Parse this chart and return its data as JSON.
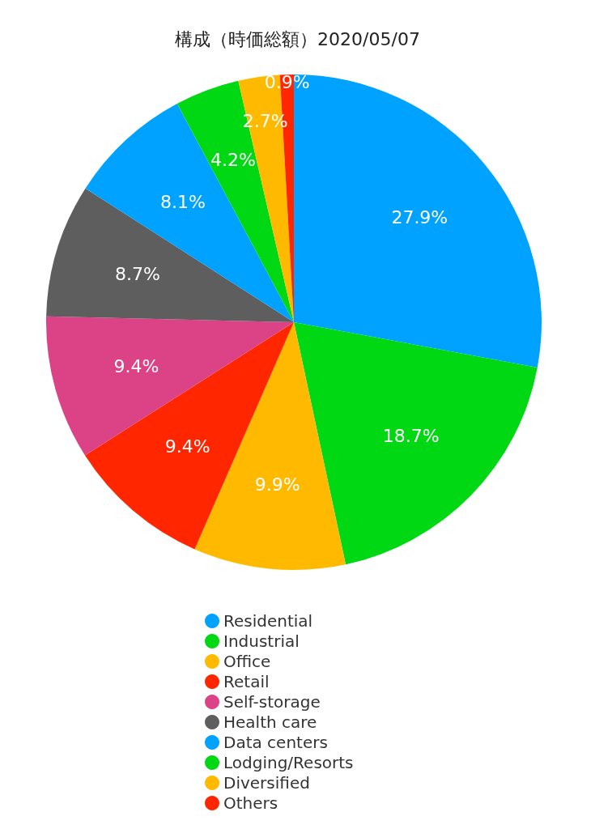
{
  "chart_data": {
    "type": "pie",
    "title": "構成（時価総額）2020/05/07",
    "categories": [
      "Residential",
      "Industrial",
      "Office",
      "Retail",
      "Self-storage",
      "Health care",
      "Data centers",
      "Lodging/Resorts",
      "Diversified",
      "Others"
    ],
    "values": [
      27.9,
      18.7,
      9.9,
      9.4,
      9.4,
      8.7,
      8.1,
      4.2,
      2.7,
      0.9
    ],
    "value_labels": [
      "27.9%",
      "18.7%",
      "9.9%",
      "9.4%",
      "9.4%",
      "8.7%",
      "8.1%",
      "4.2%",
      "2.7%",
      "0.9%"
    ],
    "colors": [
      "#00a2ff",
      "#00d814",
      "#ffba00",
      "#ff2600",
      "#dc4387",
      "#5e5e5e",
      "#00a2ff",
      "#00d814",
      "#ffba00",
      "#ff2600"
    ],
    "legend": "bottom"
  }
}
